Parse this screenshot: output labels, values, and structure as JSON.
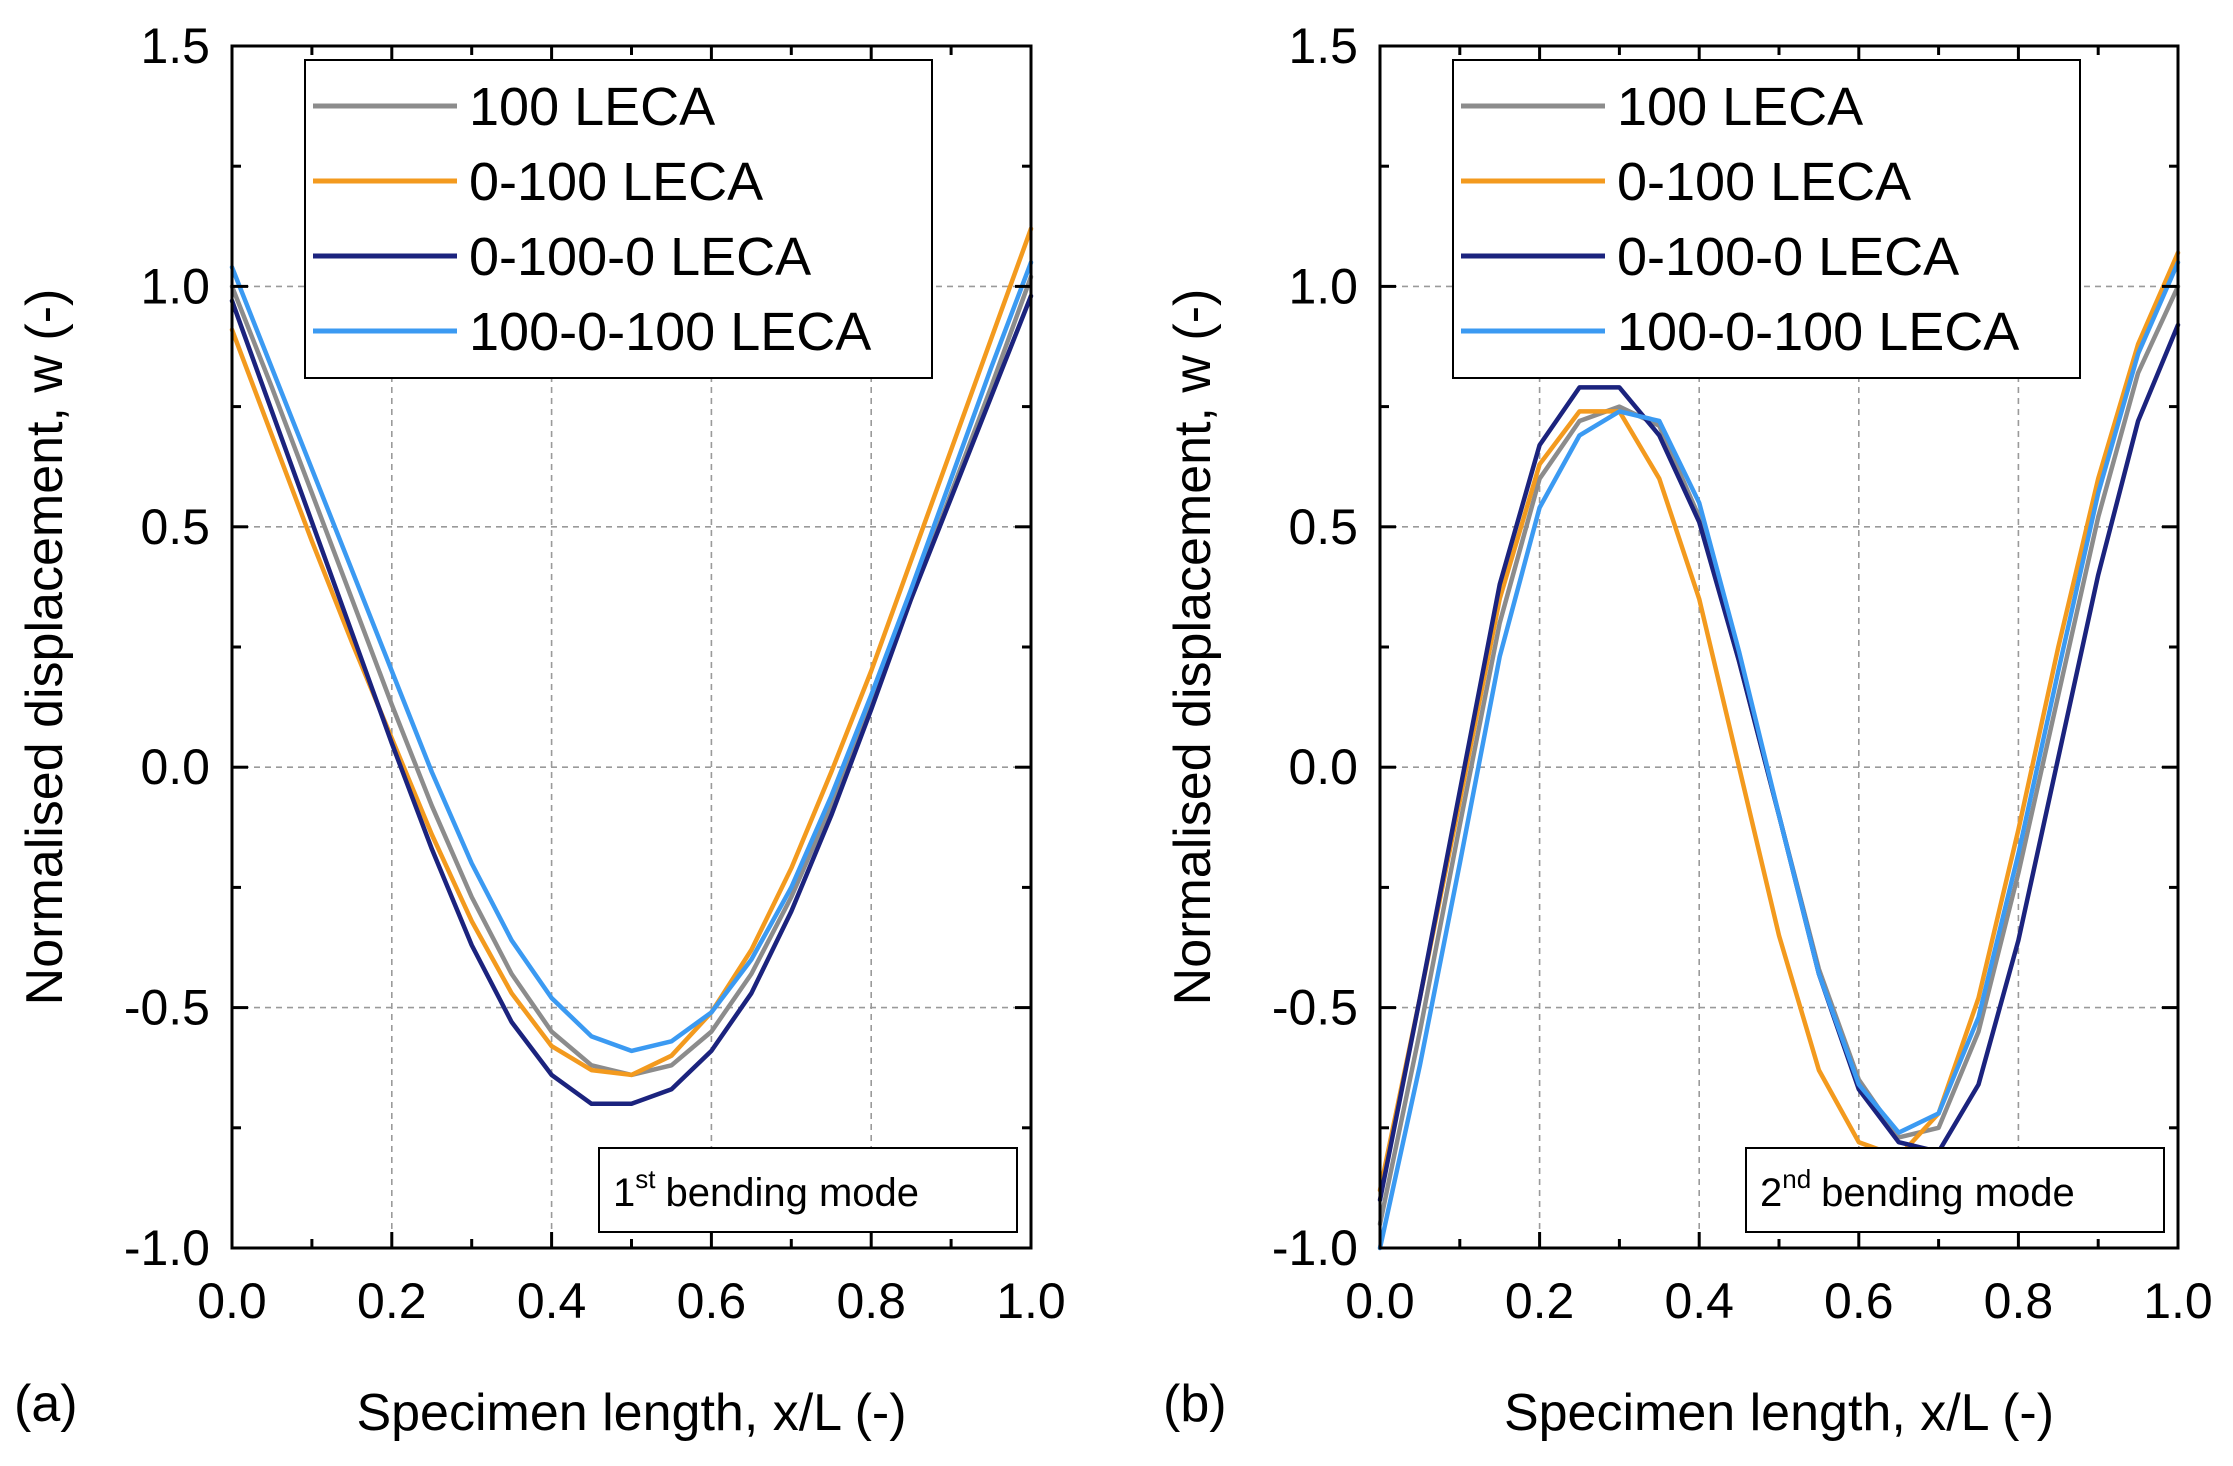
{
  "figure_colors": {
    "gray": "#8c8c8c",
    "orange": "#f39a1e",
    "navy": "#1b237e",
    "blue": "#3b9af2",
    "grid": "#9a9a9a",
    "axis": "#000000"
  },
  "chart_data": [
    {
      "type": "line",
      "panel_label": "(a)",
      "xlabel": "Specimen length, x/L (-)",
      "ylabel": "Normalised displacement, w (-)",
      "xlim": [
        0.0,
        1.0
      ],
      "ylim": [
        -1.0,
        1.5
      ],
      "xticks": [
        "0.0",
        "0.2",
        "0.4",
        "0.6",
        "0.8",
        "1.0"
      ],
      "yticks": [
        "-1.0",
        "-0.5",
        "0.0",
        "0.5",
        "1.0",
        "1.5"
      ],
      "grid": true,
      "legend_position": "top-right",
      "annotation": {
        "number": "1",
        "suffix": "st",
        "text": "bending mode",
        "position": "bottom-right"
      },
      "x": [
        0.0,
        0.05,
        0.1,
        0.15,
        0.2,
        0.25,
        0.3,
        0.35,
        0.4,
        0.45,
        0.5,
        0.55,
        0.6,
        0.65,
        0.7,
        0.75,
        0.8,
        0.85,
        0.9,
        0.95,
        1.0
      ],
      "series": [
        {
          "name": "100 LECA",
          "color": "#8c8c8c",
          "values": [
            1.0,
            0.79,
            0.57,
            0.35,
            0.13,
            -0.08,
            -0.27,
            -0.43,
            -0.55,
            -0.62,
            -0.64,
            -0.62,
            -0.55,
            -0.43,
            -0.27,
            -0.08,
            0.13,
            0.35,
            0.57,
            0.79,
            1.02
          ]
        },
        {
          "name": "0-100 LECA",
          "color": "#f39a1e",
          "values": [
            0.91,
            0.69,
            0.47,
            0.26,
            0.06,
            -0.14,
            -0.32,
            -0.47,
            -0.58,
            -0.63,
            -0.64,
            -0.6,
            -0.51,
            -0.38,
            -0.21,
            -0.01,
            0.2,
            0.43,
            0.66,
            0.89,
            1.12
          ]
        },
        {
          "name": "0-100-0 LECA",
          "color": "#1b237e",
          "values": [
            0.97,
            0.74,
            0.51,
            0.28,
            0.05,
            -0.17,
            -0.37,
            -0.53,
            -0.64,
            -0.7,
            -0.7,
            -0.67,
            -0.59,
            -0.47,
            -0.3,
            -0.1,
            0.12,
            0.35,
            0.56,
            0.77,
            0.98
          ]
        },
        {
          "name": "100-0-100 LECA",
          "color": "#3b9af2",
          "values": [
            1.04,
            0.83,
            0.62,
            0.41,
            0.2,
            -0.01,
            -0.2,
            -0.36,
            -0.48,
            -0.56,
            -0.59,
            -0.57,
            -0.51,
            -0.4,
            -0.25,
            -0.06,
            0.15,
            0.37,
            0.6,
            0.83,
            1.05
          ]
        }
      ]
    },
    {
      "type": "line",
      "panel_label": "(b)",
      "xlabel": "Specimen length, x/L (-)",
      "ylabel": "Normalised displacement, w (-)",
      "xlim": [
        0.0,
        1.0
      ],
      "ylim": [
        -1.0,
        1.5
      ],
      "xticks": [
        "0.0",
        "0.2",
        "0.4",
        "0.6",
        "0.8",
        "1.0"
      ],
      "yticks": [
        "-1.0",
        "-0.5",
        "0.0",
        "0.5",
        "1.0",
        "1.5"
      ],
      "grid": true,
      "legend_position": "top-right",
      "annotation": {
        "number": "2",
        "suffix": "nd",
        "text": "bending mode",
        "position": "bottom-right"
      },
      "x": [
        0.0,
        0.05,
        0.1,
        0.15,
        0.2,
        0.25,
        0.3,
        0.35,
        0.4,
        0.45,
        0.5,
        0.55,
        0.6,
        0.65,
        0.7,
        0.75,
        0.8,
        0.85,
        0.9,
        0.95,
        1.0
      ],
      "series": [
        {
          "name": "100 LECA",
          "color": "#8c8c8c",
          "values": [
            -0.95,
            -0.55,
            -0.12,
            0.3,
            0.6,
            0.72,
            0.75,
            0.71,
            0.52,
            0.22,
            -0.1,
            -0.42,
            -0.65,
            -0.77,
            -0.75,
            -0.55,
            -0.22,
            0.15,
            0.52,
            0.82,
            1.0
          ]
        },
        {
          "name": "0-100 LECA",
          "color": "#f39a1e",
          "values": [
            -0.88,
            -0.48,
            -0.07,
            0.35,
            0.63,
            0.74,
            0.74,
            0.6,
            0.35,
            0.0,
            -0.35,
            -0.63,
            -0.78,
            -0.81,
            -0.72,
            -0.48,
            -0.13,
            0.25,
            0.6,
            0.88,
            1.07
          ]
        },
        {
          "name": "0-100-0 LECA",
          "color": "#1b237e",
          "values": [
            -0.9,
            -0.48,
            -0.05,
            0.38,
            0.67,
            0.79,
            0.79,
            0.69,
            0.51,
            0.22,
            -0.1,
            -0.43,
            -0.67,
            -0.78,
            -0.8,
            -0.66,
            -0.36,
            0.02,
            0.4,
            0.72,
            0.92
          ]
        },
        {
          "name": "100-0-100 LECA",
          "color": "#3b9af2",
          "values": [
            -1.0,
            -0.62,
            -0.2,
            0.23,
            0.54,
            0.69,
            0.74,
            0.72,
            0.55,
            0.24,
            -0.1,
            -0.43,
            -0.66,
            -0.76,
            -0.72,
            -0.52,
            -0.18,
            0.2,
            0.57,
            0.86,
            1.05
          ]
        }
      ]
    }
  ]
}
